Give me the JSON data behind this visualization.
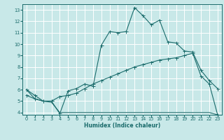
{
  "title": "",
  "xlabel": "Humidex (Indice chaleur)",
  "bg_color": "#c8e8e8",
  "grid_color": "#ffffff",
  "line_color": "#1a6b6b",
  "xlim": [
    -0.5,
    23.5
  ],
  "ylim": [
    3.8,
    13.5
  ],
  "xticks": [
    0,
    1,
    2,
    3,
    4,
    5,
    6,
    7,
    8,
    9,
    10,
    11,
    12,
    13,
    14,
    15,
    16,
    17,
    18,
    19,
    20,
    21,
    22,
    23
  ],
  "yticks": [
    4,
    5,
    6,
    7,
    8,
    9,
    10,
    11,
    12,
    13
  ],
  "line1_x": [
    0,
    1,
    2,
    3,
    4,
    5,
    6,
    7,
    8,
    9,
    10,
    11,
    12,
    13,
    14,
    15,
    16,
    17,
    18,
    19,
    20,
    21,
    22,
    23
  ],
  "line1_y": [
    6.0,
    5.5,
    5.0,
    5.0,
    3.9,
    5.9,
    6.1,
    6.5,
    6.3,
    9.9,
    11.1,
    11.0,
    11.1,
    13.2,
    12.5,
    11.7,
    12.1,
    10.2,
    10.1,
    9.4,
    9.3,
    7.7,
    6.8,
    6.1
  ],
  "line2_x": [
    0,
    1,
    2,
    3,
    4,
    5,
    6,
    7,
    8,
    9,
    10,
    11,
    12,
    13,
    14,
    15,
    16,
    17,
    18,
    19,
    20,
    21,
    22,
    23
  ],
  "line2_y": [
    5.5,
    5.2,
    5.0,
    5.0,
    5.4,
    5.5,
    5.7,
    6.1,
    6.5,
    6.8,
    7.1,
    7.4,
    7.7,
    8.0,
    8.2,
    8.4,
    8.6,
    8.7,
    8.8,
    9.0,
    9.2,
    7.2,
    6.5,
    3.8
  ],
  "line3_x": [
    0,
    1,
    2,
    3,
    4,
    5,
    6,
    7,
    8,
    9,
    10,
    11,
    12,
    13,
    14,
    15,
    16,
    17,
    18,
    19,
    20,
    21,
    22,
    23
  ],
  "line3_y": [
    6.0,
    5.2,
    5.0,
    4.9,
    4.0,
    4.0,
    4.0,
    4.0,
    4.0,
    4.0,
    4.0,
    4.0,
    4.0,
    4.0,
    4.0,
    4.0,
    4.0,
    4.0,
    4.0,
    4.0,
    4.0,
    4.0,
    4.0,
    3.8
  ],
  "xlabel_fontsize": 5.5,
  "tick_fontsize": 4.8,
  "lw": 0.8,
  "marker_size": 2.0
}
